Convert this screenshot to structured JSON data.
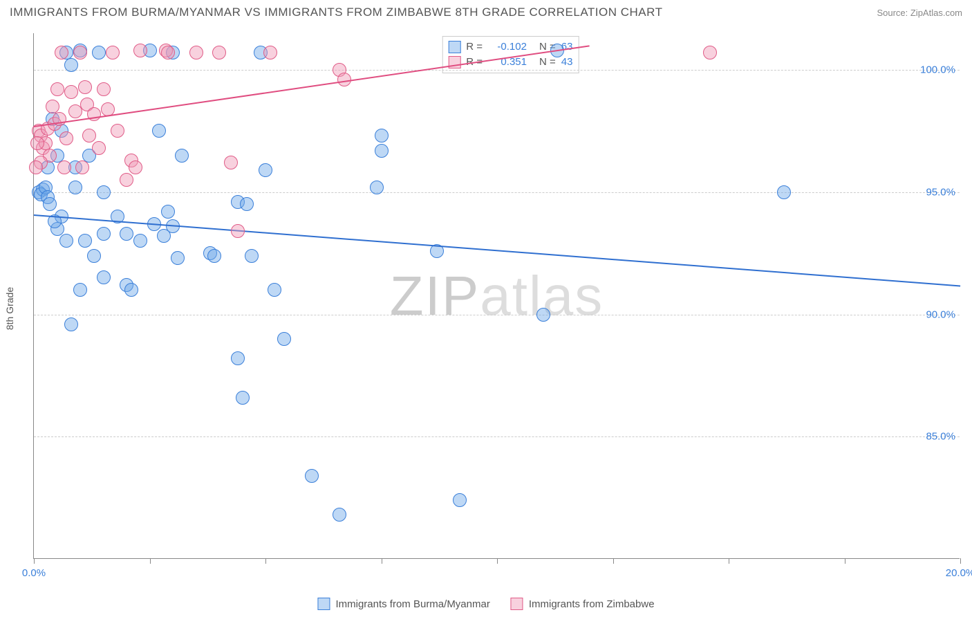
{
  "title": "IMMIGRANTS FROM BURMA/MYANMAR VS IMMIGRANTS FROM ZIMBABWE 8TH GRADE CORRELATION CHART",
  "source": "Source: ZipAtlas.com",
  "y_axis_label": "8th Grade",
  "watermark_prefix": "ZIP",
  "watermark_suffix": "atlas",
  "chart": {
    "type": "scatter",
    "xlim": [
      0,
      20
    ],
    "ylim": [
      80,
      101.5
    ],
    "x_ticks": [
      0,
      2.5,
      5,
      7.5,
      10,
      12.5,
      15,
      17.5,
      20
    ],
    "x_tick_labels": {
      "0": "0.0%",
      "20": "20.0%"
    },
    "y_ticks": [
      85,
      90,
      95,
      100
    ],
    "y_tick_labels": {
      "85": "85.0%",
      "90": "90.0%",
      "95": "95.0%",
      "100": "100.0%"
    },
    "background_color": "#ffffff",
    "grid_color": "#cccccc",
    "axis_color": "#888888",
    "label_color": "#3a7fd9",
    "marker_radius": 10,
    "marker_opacity": 0.55,
    "series": [
      {
        "name": "Immigrants from Burma/Myanmar",
        "color": "#6fa8e8",
        "stroke": "#3a7fd9",
        "fill": "rgba(111,168,232,0.45)",
        "R_label": "R =",
        "R": "-0.102",
        "N_label": "N =",
        "N": "63",
        "trend": {
          "x1": 0,
          "y1": 94.1,
          "x2": 20,
          "y2": 91.2,
          "color": "#2f6fd0"
        },
        "points": [
          [
            0.1,
            95.0
          ],
          [
            0.2,
            95.1
          ],
          [
            0.15,
            94.9
          ],
          [
            0.25,
            95.2
          ],
          [
            0.3,
            94.8
          ],
          [
            0.9,
            95.2
          ],
          [
            1.5,
            95.0
          ],
          [
            0.6,
            97.5
          ],
          [
            1.0,
            100.8
          ],
          [
            2.5,
            100.8
          ],
          [
            3.0,
            100.7
          ],
          [
            4.9,
            100.7
          ],
          [
            0.5,
            93.5
          ],
          [
            1.3,
            92.4
          ],
          [
            0.8,
            100.2
          ],
          [
            2.7,
            97.5
          ],
          [
            3.2,
            96.5
          ],
          [
            2.6,
            93.7
          ],
          [
            2.9,
            94.2
          ],
          [
            2.8,
            93.2
          ],
          [
            2.3,
            93.0
          ],
          [
            3.0,
            93.6
          ],
          [
            3.1,
            92.3
          ],
          [
            2.0,
            91.2
          ],
          [
            0.8,
            89.6
          ],
          [
            1.5,
            91.5
          ],
          [
            2.1,
            91.0
          ],
          [
            3.8,
            92.5
          ],
          [
            3.9,
            92.4
          ],
          [
            4.4,
            94.6
          ],
          [
            4.6,
            94.5
          ],
          [
            5.0,
            95.9
          ],
          [
            4.7,
            92.4
          ],
          [
            5.2,
            91.0
          ],
          [
            5.4,
            89.0
          ],
          [
            4.4,
            88.2
          ],
          [
            4.5,
            86.6
          ],
          [
            6.0,
            83.4
          ],
          [
            6.6,
            81.8
          ],
          [
            9.2,
            82.4
          ],
          [
            7.5,
            96.7
          ],
          [
            7.4,
            95.2
          ],
          [
            8.7,
            92.6
          ],
          [
            11.3,
            100.8
          ],
          [
            11.0,
            90.0
          ],
          [
            16.2,
            95.0
          ],
          [
            7.5,
            97.3
          ],
          [
            1.5,
            93.3
          ],
          [
            0.7,
            93.0
          ],
          [
            1.0,
            91.0
          ],
          [
            1.1,
            93.0
          ],
          [
            2.0,
            93.3
          ],
          [
            0.3,
            96.0
          ],
          [
            0.4,
            98.0
          ],
          [
            0.5,
            96.5
          ],
          [
            0.6,
            94.0
          ],
          [
            0.9,
            96.0
          ],
          [
            1.2,
            96.5
          ],
          [
            1.8,
            94.0
          ],
          [
            0.35,
            94.5
          ],
          [
            0.45,
            93.8
          ],
          [
            0.7,
            100.7
          ],
          [
            1.4,
            100.7
          ]
        ]
      },
      {
        "name": "Immigrants from Zimbabwe",
        "color": "#f09ab5",
        "stroke": "#e05b87",
        "fill": "rgba(240,154,181,0.45)",
        "R_label": "R =",
        "R": "0.351",
        "N_label": "N =",
        "N": "43",
        "trend": {
          "x1": 0,
          "y1": 97.7,
          "x2": 12,
          "y2": 101.0,
          "color": "#e04d80"
        },
        "points": [
          [
            0.1,
            97.5
          ],
          [
            0.15,
            97.3
          ],
          [
            0.2,
            96.8
          ],
          [
            0.25,
            97.0
          ],
          [
            0.3,
            97.6
          ],
          [
            0.35,
            96.5
          ],
          [
            0.15,
            96.2
          ],
          [
            0.5,
            99.2
          ],
          [
            0.6,
            100.7
          ],
          [
            0.8,
            99.1
          ],
          [
            1.0,
            100.7
          ],
          [
            1.1,
            99.3
          ],
          [
            1.15,
            98.6
          ],
          [
            1.2,
            97.3
          ],
          [
            1.3,
            98.2
          ],
          [
            1.5,
            99.2
          ],
          [
            1.6,
            98.4
          ],
          [
            1.7,
            100.7
          ],
          [
            1.8,
            97.5
          ],
          [
            2.0,
            95.5
          ],
          [
            2.1,
            96.3
          ],
          [
            2.2,
            96.0
          ],
          [
            2.3,
            100.8
          ],
          [
            2.85,
            100.8
          ],
          [
            2.9,
            100.7
          ],
          [
            3.5,
            100.7
          ],
          [
            4.0,
            100.7
          ],
          [
            4.25,
            96.2
          ],
          [
            5.1,
            100.7
          ],
          [
            6.6,
            100.0
          ],
          [
            6.7,
            99.6
          ],
          [
            4.4,
            93.4
          ],
          [
            14.6,
            100.7
          ],
          [
            0.4,
            98.5
          ],
          [
            0.45,
            97.8
          ],
          [
            0.55,
            98.0
          ],
          [
            0.65,
            96.0
          ],
          [
            0.7,
            97.2
          ],
          [
            0.9,
            98.3
          ],
          [
            1.4,
            96.8
          ],
          [
            1.05,
            96.0
          ],
          [
            0.05,
            96.0
          ],
          [
            0.08,
            97.0
          ]
        ]
      }
    ]
  }
}
